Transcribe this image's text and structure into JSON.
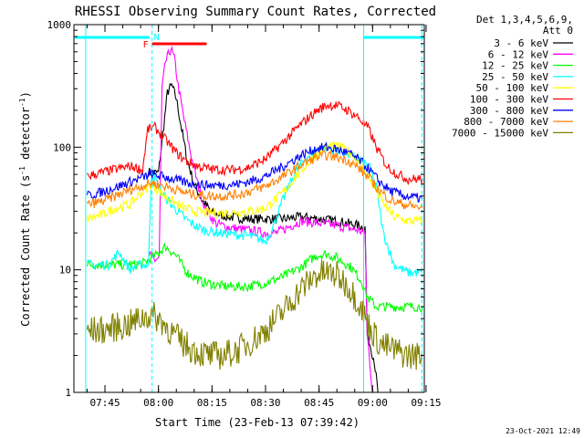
{
  "chart_data": {
    "type": "line",
    "title": "RHESSI Observing Summary Count Rates, Corrected",
    "xlabel": "Start Time (23-Feb-13 07:39:42)",
    "ylabel": "Corrected Count Rate (s^-1 detector^-1)",
    "ylabel_main": "Corrected Count Rate (s",
    "ylabel_sup1": "-1",
    "ylabel_mid": " detector",
    "ylabel_sup2": "-1",
    "ylabel_end": ")",
    "y_scale": "log",
    "ylim": [
      1,
      1000
    ],
    "xlim_minutes": [
      -3.7,
      94.5
    ],
    "x_ticks": [
      {
        "t": 5,
        "label": "07:45"
      },
      {
        "t": 20,
        "label": "08:00"
      },
      {
        "t": 35,
        "label": "08:15"
      },
      {
        "t": 50,
        "label": "08:30"
      },
      {
        "t": 65,
        "label": "08:45"
      },
      {
        "t": 80,
        "label": "09:00"
      },
      {
        "t": 95,
        "label": "09:15"
      }
    ],
    "y_ticks": [
      {
        "v": 1,
        "label": "1"
      },
      {
        "v": 10,
        "label": "10"
      },
      {
        "v": 100,
        "label": "100"
      },
      {
        "v": 1000,
        "label": "1000"
      }
    ],
    "legend_header": [
      "Det 1,3,4,5,6,9,",
      "Att 0"
    ],
    "legend_position": "right",
    "series": [
      {
        "name": "3 - 6 keV",
        "color": "#000000",
        "points": [
          [
            17.2,
            63
          ],
          [
            18.5,
            62
          ],
          [
            20,
            62
          ],
          [
            21.5,
            150
          ],
          [
            22.5,
            280
          ],
          [
            23.7,
            320
          ],
          [
            25,
            250
          ],
          [
            26.5,
            140
          ],
          [
            28,
            80
          ],
          [
            30,
            50
          ],
          [
            32,
            38
          ],
          [
            35,
            29
          ],
          [
            40,
            27
          ],
          [
            45,
            26
          ],
          [
            50,
            26
          ],
          [
            55,
            26
          ],
          [
            60,
            27
          ],
          [
            65,
            26
          ],
          [
            70,
            25
          ],
          [
            76,
            23
          ],
          [
            77.9,
            22
          ],
          [
            78.5,
            3
          ],
          [
            80.5,
            1.8
          ],
          [
            81.5,
            1
          ]
        ]
      },
      {
        "name": "6 - 12 keV",
        "color": "#ff00ff",
        "points": [
          [
            17.2,
            13.5
          ],
          [
            19,
            12
          ],
          [
            20.2,
            12.5
          ],
          [
            21,
            300
          ],
          [
            22,
            500
          ],
          [
            23.5,
            640
          ],
          [
            24.5,
            520
          ],
          [
            25.5,
            320
          ],
          [
            27,
            180
          ],
          [
            29,
            90
          ],
          [
            31,
            50
          ],
          [
            33,
            32
          ],
          [
            36,
            24
          ],
          [
            40,
            22
          ],
          [
            45,
            21
          ],
          [
            50,
            20
          ],
          [
            53,
            20
          ],
          [
            56,
            22
          ],
          [
            60,
            25
          ],
          [
            65,
            24
          ],
          [
            70,
            23
          ],
          [
            76,
            21
          ],
          [
            77.9,
            20
          ],
          [
            78.5,
            3
          ],
          [
            80,
            1
          ]
        ]
      },
      {
        "name": "12 - 25 keV",
        "color": "#00ff00",
        "points": [
          [
            0,
            11
          ],
          [
            5,
            11
          ],
          [
            10,
            11
          ],
          [
            15,
            11
          ],
          [
            17.2,
            12
          ],
          [
            19,
            13
          ],
          [
            22,
            15.5
          ],
          [
            25,
            13
          ],
          [
            28,
            9.5
          ],
          [
            32,
            8
          ],
          [
            36,
            7.5
          ],
          [
            40,
            7.3
          ],
          [
            45,
            7.3
          ],
          [
            50,
            7.8
          ],
          [
            55,
            8.8
          ],
          [
            60,
            10.5
          ],
          [
            64,
            13
          ],
          [
            67,
            13.5
          ],
          [
            70,
            12.5
          ],
          [
            74,
            10.5
          ],
          [
            77,
            8
          ],
          [
            78.5,
            6
          ],
          [
            81,
            5
          ],
          [
            85,
            5
          ],
          [
            90,
            5
          ],
          [
            94,
            5
          ]
        ]
      },
      {
        "name": "25 - 50 keV",
        "color": "#00ffff",
        "points": [
          [
            0,
            11
          ],
          [
            6,
            11
          ],
          [
            9,
            14
          ],
          [
            12,
            10
          ],
          [
            15,
            11
          ],
          [
            17.2,
            11
          ],
          [
            18,
            60
          ],
          [
            19,
            56
          ],
          [
            21,
            42
          ],
          [
            24,
            33
          ],
          [
            27,
            27
          ],
          [
            30,
            23
          ],
          [
            33,
            21
          ],
          [
            37,
            20
          ],
          [
            41,
            19.5
          ],
          [
            45,
            19
          ],
          [
            48,
            18
          ],
          [
            50,
            17
          ],
          [
            52,
            22
          ],
          [
            55,
            38
          ],
          [
            58,
            60
          ],
          [
            61,
            80
          ],
          [
            64,
            95
          ],
          [
            67,
            99
          ],
          [
            70,
            95
          ],
          [
            73,
            88
          ],
          [
            76,
            80
          ],
          [
            79,
            70
          ],
          [
            81,
            48
          ],
          [
            83,
            20
          ],
          [
            86,
            11
          ],
          [
            90,
            9.5
          ],
          [
            94,
            9.5
          ]
        ]
      },
      {
        "name": "50 - 100 keV",
        "color": "#ffff00",
        "points": [
          [
            0,
            26
          ],
          [
            4,
            28
          ],
          [
            8,
            32
          ],
          [
            12,
            34
          ],
          [
            15,
            42
          ],
          [
            18,
            50
          ],
          [
            21,
            42
          ],
          [
            24,
            36
          ],
          [
            27,
            32
          ],
          [
            30,
            30
          ],
          [
            34,
            29
          ],
          [
            38,
            29
          ],
          [
            42,
            29.5
          ],
          [
            46,
            30
          ],
          [
            50,
            32
          ],
          [
            54,
            40
          ],
          [
            58,
            55
          ],
          [
            62,
            75
          ],
          [
            65,
            93
          ],
          [
            68,
            102
          ],
          [
            71,
            100
          ],
          [
            74,
            90
          ],
          [
            77,
            72
          ],
          [
            80,
            50
          ],
          [
            83,
            35
          ],
          [
            86,
            27
          ],
          [
            90,
            25
          ],
          [
            94,
            25
          ]
        ]
      },
      {
        "name": "100 - 300 keV",
        "color": "#ff0000",
        "points": [
          [
            0,
            58
          ],
          [
            4,
            62
          ],
          [
            8,
            66
          ],
          [
            12,
            70
          ],
          [
            14,
            68
          ],
          [
            15.5,
            64
          ],
          [
            17,
            140
          ],
          [
            19,
            145
          ],
          [
            22,
            115
          ],
          [
            25,
            90
          ],
          [
            28,
            76
          ],
          [
            31,
            70
          ],
          [
            35,
            66
          ],
          [
            40,
            65
          ],
          [
            45,
            68
          ],
          [
            50,
            80
          ],
          [
            55,
            110
          ],
          [
            60,
            155
          ],
          [
            64,
            195
          ],
          [
            67,
            220
          ],
          [
            70,
            220
          ],
          [
            73,
            200
          ],
          [
            76,
            175
          ],
          [
            79,
            140
          ],
          [
            81,
            100
          ],
          [
            84,
            70
          ],
          [
            87,
            60
          ],
          [
            90,
            55
          ],
          [
            94,
            55
          ]
        ]
      },
      {
        "name": "300 - 800 keV",
        "color": "#0000ff",
        "points": [
          [
            0,
            40
          ],
          [
            4,
            43
          ],
          [
            8,
            47
          ],
          [
            12,
            52
          ],
          [
            15,
            56
          ],
          [
            18,
            60
          ],
          [
            21,
            58
          ],
          [
            24,
            55
          ],
          [
            27,
            52
          ],
          [
            30,
            50
          ],
          [
            34,
            49
          ],
          [
            38,
            49
          ],
          [
            42,
            50
          ],
          [
            46,
            53
          ],
          [
            50,
            58
          ],
          [
            55,
            70
          ],
          [
            60,
            86
          ],
          [
            64,
            97
          ],
          [
            67,
            100
          ],
          [
            70,
            96
          ],
          [
            73,
            90
          ],
          [
            76,
            80
          ],
          [
            79,
            66
          ],
          [
            82,
            52
          ],
          [
            85,
            44
          ],
          [
            89,
            40
          ],
          [
            94,
            38
          ]
        ]
      },
      {
        "name": "800 - 7000 keV",
        "color": "#ff8000",
        "points": [
          [
            0,
            34
          ],
          [
            4,
            36
          ],
          [
            8,
            40
          ],
          [
            12,
            45
          ],
          [
            15,
            48
          ],
          [
            18,
            51
          ],
          [
            21,
            49
          ],
          [
            24,
            46
          ],
          [
            27,
            43
          ],
          [
            30,
            41
          ],
          [
            34,
            40
          ],
          [
            38,
            40
          ],
          [
            42,
            41
          ],
          [
            46,
            44
          ],
          [
            50,
            48
          ],
          [
            55,
            58
          ],
          [
            60,
            72
          ],
          [
            64,
            82
          ],
          [
            67,
            86
          ],
          [
            70,
            83
          ],
          [
            73,
            78
          ],
          [
            76,
            68
          ],
          [
            79,
            56
          ],
          [
            82,
            44
          ],
          [
            85,
            37
          ],
          [
            89,
            34
          ],
          [
            94,
            32
          ]
        ]
      },
      {
        "name": "7000 - 15000 keV",
        "color": "#808000",
        "points": [
          [
            0,
            3.2
          ],
          [
            4,
            3.2
          ],
          [
            8,
            3.4
          ],
          [
            12,
            3.6
          ],
          [
            15,
            4
          ],
          [
            18,
            4.3
          ],
          [
            21,
            3.8
          ],
          [
            24,
            3
          ],
          [
            27,
            2.5
          ],
          [
            30,
            2.2
          ],
          [
            34,
            2
          ],
          [
            38,
            2
          ],
          [
            42,
            2.2
          ],
          [
            46,
            2.6
          ],
          [
            50,
            3.2
          ],
          [
            55,
            4.6
          ],
          [
            60,
            7
          ],
          [
            64,
            9
          ],
          [
            67,
            9.5
          ],
          [
            70,
            9
          ],
          [
            73,
            7.5
          ],
          [
            76,
            5.5
          ],
          [
            79,
            3.5
          ],
          [
            82,
            2.5
          ],
          [
            86,
            2.2
          ],
          [
            90,
            2
          ],
          [
            94,
            2
          ]
        ]
      }
    ],
    "annotations": {
      "saa_left": {
        "x0": -3.5,
        "x1": 17.5,
        "color": "#00ffff"
      },
      "saa_right": {
        "x0": 77.5,
        "x1": 94.4,
        "color": "#00ffff"
      },
      "night_left_start": -0.4,
      "night_left_end": 18.2,
      "night_right_start": 93.8,
      "day_start": 77.5,
      "f_label": "F",
      "n_label": "N",
      "flare_bar": {
        "x0": 18.2,
        "x1": 33.5,
        "color": "#ff0000"
      }
    }
  },
  "footer": {
    "timestamp": "23-Oct-2021 12:49"
  }
}
